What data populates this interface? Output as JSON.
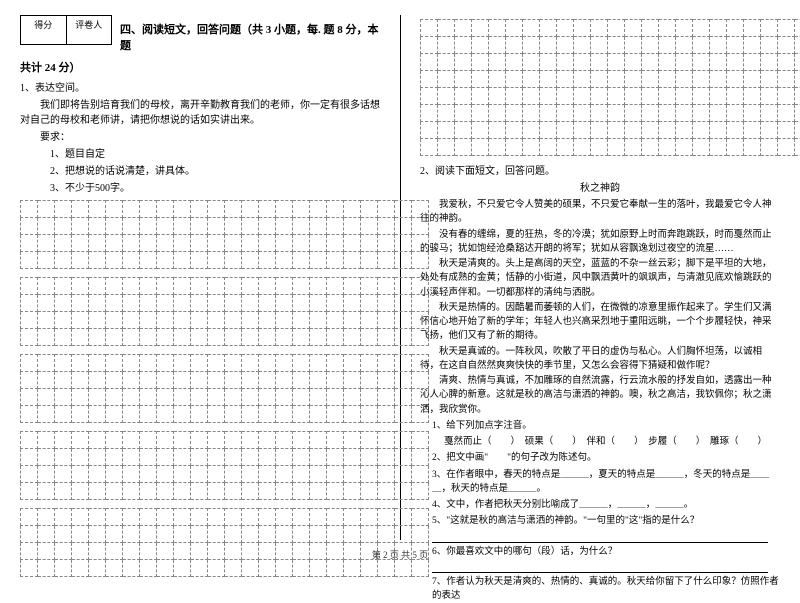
{
  "scorebox": {
    "col1": "得分",
    "col2": "评卷人"
  },
  "section4": {
    "title": "四、阅读短文，回答问题（共 3 小题，每. 题 8 分，本题",
    "subtitle": "共计 24 分）"
  },
  "q1": {
    "num": "1、表达空间。",
    "body": "我们即将告别培育我们的母校，离开辛勤教育我们的老师，你一定有很多话想对自己的母校和老师讲，请把你想说的话如实讲出来。",
    "req_label": "要求：",
    "req1": "1、题目自定",
    "req2": "2、把想说的话说清楚，讲具体。",
    "req3": "3、不少于500字。"
  },
  "grid": {
    "cols": 24,
    "left_rows_blocks": [
      4,
      4,
      4,
      4,
      4
    ],
    "right_top_rows": 8
  },
  "q2": {
    "num": "2、阅读下面短文，回答问题。",
    "title": "秋之神韵",
    "p1": "我爱秋，不只爱它令人赞美的硕果，不只爱它奉献一生的落叶，我最爱它令人神往的神韵。",
    "p2": "没有春的缠绵，夏的狂热，冬的冷漠；犹如原野上时而奔跑跳跃，时而戛然而止的骏马；犹如饱经沧桑豁达开朗的将军；犹如从容飘逸划过夜空的流星……",
    "p3": "秋天是清爽的。头上是高阔的天空，蓝蓝的不杂一丝云彩；脚下是平坦的大地，处处有成熟的金黄；恬静的小街道，风中飘洒黄叶的飒飒声，与清澈见底欢愉跳跃的小溪轻声伴和。一切都那样的清纯与洒脱。",
    "p4": "秋天是热情的。因酷暑而萎顿的人们，在微微的凉意里振作起来了。学生们又满怀信心地开始了新的学年；年轻人也兴高采烈地于重阳远眺，一个个步履轻快，神采飞扬，他们又有了新的期待。",
    "p5": "秋天是真诚的。一阵秋风，吹散了平日的虚伪与私心。人们胸怀坦荡，以诚相待，在这自自然然爽爽快快的季节里，又怎么会容得下猜疑和做作呢？",
    "p6": "清爽、热情与真诚，不加雕琢的自然流露，行云流水般的抒发自如，透露出一种沁人心脾的新意。这就是秋的高洁与潇洒的神韵。噢，秋之高洁，我钦佩你；秋之潇洒，我欣赏你。",
    "sq1": "1、给下列加点字注音。",
    "sq1_line": "戛然而止（　　）　硕果（　　）　伴和（　　）　步履（　　）　雕琢（　　）",
    "sq2": "2、把文中画\"　　\"的句子改为陈述句。",
    "sq3": "3、在作者眼中，春天的特点是＿＿＿，夏天的特点是＿＿＿，冬天的特点是＿＿＿，秋天的特点是＿＿＿。",
    "sq4": "4、文中，作者把秋天分别比喻成了＿＿＿，＿＿＿，＿＿＿。",
    "sq5": "5、\"这就是秋的高洁与潇洒的神韵。\"一句里的\"这\"指的是什么？",
    "sq6": "6、你最喜欢文中的哪句（段）话，为什么？",
    "sq7": "7、作者认为秋天是清爽的、热情的、真诚的。秋天给你留下了什么印象？仿照作者的表达"
  },
  "footer": "第 2 页 共 5 页"
}
